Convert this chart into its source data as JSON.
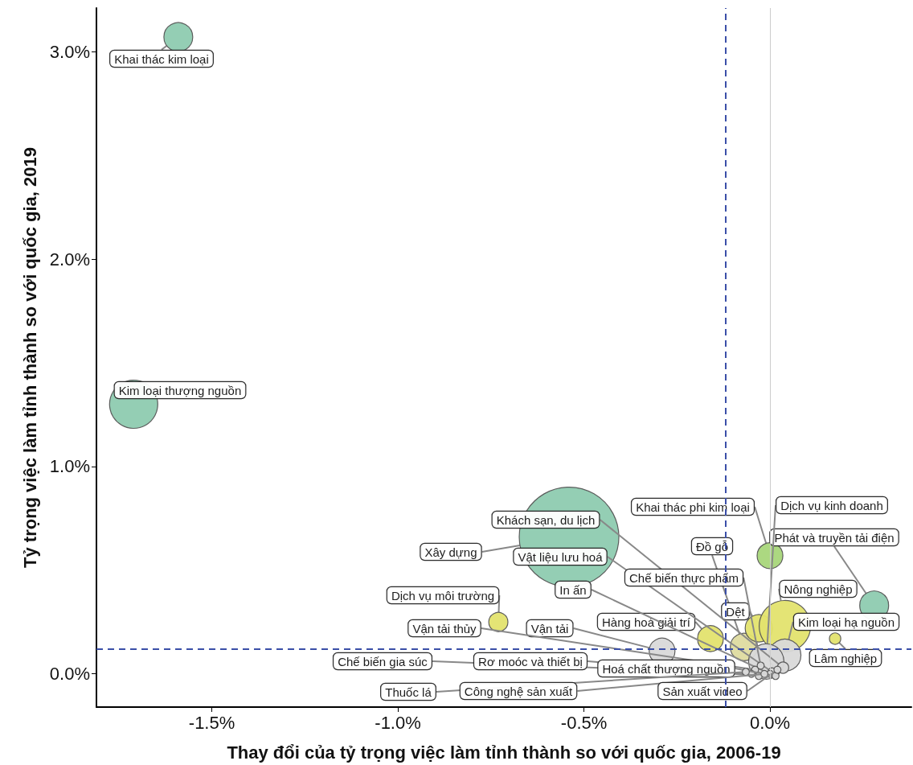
{
  "chart_data": {
    "type": "bubble",
    "xlabel": "Thay đổi của tỷ trọng việc làm tỉnh thành so với quốc gia, 2006-19",
    "ylabel": "Tỷ trọng việc làm tỉnh thành so với quốc gia, 2019",
    "xlim": [
      -1.81,
      0.38
    ],
    "ylim": [
      -0.16,
      3.21
    ],
    "xticks": [
      {
        "value": -1.5,
        "label": "-1.5%"
      },
      {
        "value": -1.0,
        "label": "-1.0%"
      },
      {
        "value": -0.5,
        "label": "-0.5%"
      },
      {
        "value": 0,
        "label": "0.0%"
      }
    ],
    "yticks": [
      {
        "value": 0,
        "label": "0.0%"
      },
      {
        "value": 1,
        "label": "1.0%"
      },
      {
        "value": 2,
        "label": "2.0%"
      },
      {
        "value": 3,
        "label": "3.0%"
      }
    ],
    "grid": false,
    "legend": false,
    "ref_lines": [
      {
        "axis": "x",
        "value": 0,
        "color": "#cccccc",
        "line_style": "solid"
      },
      {
        "axis": "x",
        "value": -0.12,
        "color": "#3b4fa8",
        "line_style": "dashed"
      },
      {
        "axis": "y",
        "value": 0.12,
        "color": "#3b4fa8",
        "line_style": "dashed"
      }
    ],
    "series": [
      {
        "name": "Khai thác kim loại",
        "color": "#8ecbb0",
        "x": [
          -1.59
        ],
        "values": [
          3.07
        ],
        "sizes": [
          0.084
        ]
      },
      {
        "name": "Kim loại thượng nguồn",
        "color": "#8ecbb0",
        "x": [
          -1.71
        ],
        "values": [
          1.3
        ],
        "sizes": [
          0.234
        ]
      },
      {
        "name": "Xây dựng",
        "color": "#8ecbb0",
        "x": [
          -0.54
        ],
        "values": [
          0.66
        ],
        "sizes": [
          1
        ]
      },
      {
        "name": "Dịch vụ môi trường",
        "color": "#e3e36e",
        "x": [
          -0.73
        ],
        "values": [
          0.25
        ],
        "sizes": [
          0.037
        ]
      },
      {
        "name": "Vận tải",
        "color": "#d9d9d9",
        "x": [
          -0.29
        ],
        "values": [
          0.11
        ],
        "sizes": [
          0.067
        ]
      },
      {
        "name": "Hàng hoá giải trí",
        "color": "#e3e36e",
        "x": [
          -0.16
        ],
        "values": [
          0.17
        ],
        "sizes": [
          0.067
        ]
      },
      {
        "name": "Đồ gỗ",
        "color": "#dedba0",
        "x": [
          -0.07
        ],
        "values": [
          0.13
        ],
        "sizes": [
          0.075
        ]
      },
      {
        "name": "Dệt",
        "color": "#e3e36e",
        "x": [
          -0.03
        ],
        "values": [
          0.22
        ],
        "sizes": [
          0.075
        ]
      },
      {
        "name": "Khai thác phi kim loại",
        "color": "#a8d67a",
        "x": [
          0.0
        ],
        "values": [
          0.57
        ],
        "sizes": [
          0.067
        ]
      },
      {
        "name": "Nông nghiệp",
        "color": "#e3e36e",
        "x": [
          0.04
        ],
        "values": [
          0.23
        ],
        "sizes": [
          0.266
        ]
      },
      {
        "name": "Phát và truyền tải điện",
        "color": "#8ecbb0",
        "x": [
          0.28
        ],
        "values": [
          0.33
        ],
        "sizes": [
          0.084
        ]
      },
      {
        "name": "Lâm nghiệp",
        "color": "#e3e36e",
        "x": [
          0.175
        ],
        "values": [
          0.17
        ],
        "sizes": [
          0.013
        ]
      },
      {
        "name": "Kim loại hạ nguồn",
        "color": "#d9d9d9",
        "x": [
          0.04
        ],
        "values": [
          0.09
        ],
        "sizes": [
          0.104
        ]
      },
      {
        "name": "Dịch vụ kinh doanh",
        "color": "#d9d9d9",
        "x": [
          -0.01
        ],
        "values": [
          0.06
        ],
        "sizes": [
          0.126
        ]
      },
      {
        "name": "Khách sạn, du lịch",
        "color": "#d9d9d9",
        "x": [
          0.035
        ],
        "values": [
          0.03
        ],
        "sizes": [
          0.013
        ]
      },
      {
        "name": "Vật liệu lưu hoá",
        "color": "#d9d9d9",
        "x": [
          0.005
        ],
        "values": [
          0.01
        ],
        "sizes": [
          0.0065
        ]
      },
      {
        "name": "In ấn",
        "color": "#d9d9d9",
        "x": [
          0.0
        ],
        "values": [
          0.0
        ],
        "sizes": [
          0.005
        ]
      },
      {
        "name": "Vận tải thủy",
        "color": "#d9d9d9",
        "x": [
          -0.04
        ],
        "values": [
          0.02
        ],
        "sizes": [
          0.005
        ]
      },
      {
        "name": "Chế biến thực phẩm",
        "color": "#d9d9d9",
        "x": [
          -0.025
        ],
        "values": [
          0.04
        ],
        "sizes": [
          0.005
        ]
      },
      {
        "name": "Chế biến gia súc",
        "color": "#d9d9d9",
        "x": [
          -0.05
        ],
        "values": [
          0.0
        ],
        "sizes": [
          0.005
        ]
      },
      {
        "name": "Rơ moóc và thiết bị",
        "color": "#d9d9d9",
        "x": [
          -0.03
        ],
        "values": [
          -0.01
        ],
        "sizes": [
          0.005
        ]
      },
      {
        "name": "Hoá chất thượng nguồn",
        "color": "#d9d9d9",
        "x": [
          0.015
        ],
        "values": [
          -0.01
        ],
        "sizes": [
          0.005
        ]
      },
      {
        "name": "Thuốc lá",
        "color": "#d9d9d9",
        "x": [
          -0.065
        ],
        "values": [
          0.01
        ],
        "sizes": [
          0.005
        ]
      },
      {
        "name": "Công nghệ sản xuất",
        "color": "#d9d9d9",
        "x": [
          -0.015
        ],
        "values": [
          0.0
        ],
        "sizes": [
          0.005
        ]
      },
      {
        "name": "Sản xuất video",
        "color": "#d9d9d9",
        "x": [
          0.02
        ],
        "values": [
          0.02
        ],
        "sizes": [
          0.005
        ]
      }
    ]
  }
}
